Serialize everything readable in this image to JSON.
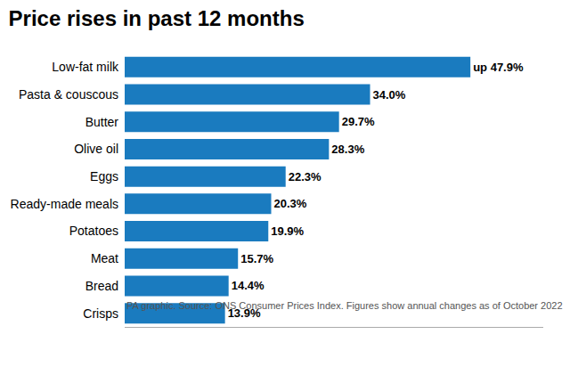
{
  "chart_data": {
    "type": "bar",
    "orientation": "horizontal",
    "title": "Price rises in past 12 months",
    "categories": [
      "Crisps",
      "Bread",
      "Meat",
      "Potatoes",
      "Ready-made meals",
      "Eggs",
      "Olive oil",
      "Butter",
      "Pasta & couscous",
      "Low-fat milk"
    ],
    "values": [
      13.9,
      14.4,
      15.7,
      19.9,
      20.3,
      22.3,
      28.3,
      29.7,
      34.0,
      47.9
    ],
    "value_labels": [
      "13.9%",
      "14.4%",
      "15.7%",
      "19.9%",
      "20.3%",
      "22.3%",
      "28.3%",
      "29.7%",
      "34.0%",
      "up 47.9%"
    ],
    "data_labels": true,
    "color": "#1a7bbf",
    "xlim": [
      0,
      58
    ],
    "tick_labels": "y",
    "grid": false,
    "annotations": [
      "PA graphic. Source: ONS Consumer Prices Index. Figures show annual changes as of October 2022"
    ]
  }
}
